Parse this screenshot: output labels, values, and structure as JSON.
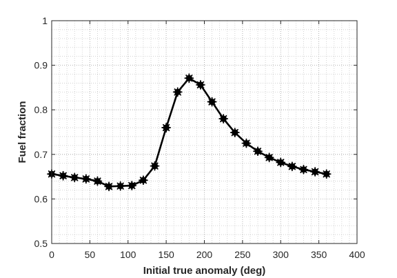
{
  "chart_data": {
    "type": "line",
    "title": "",
    "xlabel": "Initial true anomaly (deg)",
    "ylabel": "Fuel fraction",
    "xlim": [
      0,
      400
    ],
    "ylim": [
      0.5,
      1
    ],
    "xticks": [
      0,
      50,
      100,
      150,
      200,
      250,
      300,
      350,
      400
    ],
    "yticks": [
      0.5,
      0.6,
      0.7,
      0.8,
      0.9,
      1
    ],
    "xtick_labels": [
      "0",
      "50",
      "100",
      "150",
      "200",
      "250",
      "300",
      "350",
      "400"
    ],
    "ytick_labels": [
      "0.5",
      "0.6",
      "0.7",
      "0.8",
      "0.9",
      "1"
    ],
    "grid": "minor dotted",
    "legend": "none",
    "series": [
      {
        "color": "#000000",
        "marker": "asterisk-filled-circle",
        "x": [
          0,
          15,
          30,
          45,
          60,
          75,
          90,
          105,
          120,
          135,
          150,
          165,
          180,
          195,
          210,
          225,
          240,
          255,
          270,
          285,
          300,
          315,
          330,
          345,
          360
        ],
        "y": [
          0.656,
          0.652,
          0.648,
          0.645,
          0.64,
          0.628,
          0.629,
          0.63,
          0.642,
          0.674,
          0.76,
          0.84,
          0.871,
          0.856,
          0.818,
          0.78,
          0.749,
          0.725,
          0.707,
          0.693,
          0.682,
          0.673,
          0.666,
          0.661,
          0.656
        ]
      }
    ]
  }
}
